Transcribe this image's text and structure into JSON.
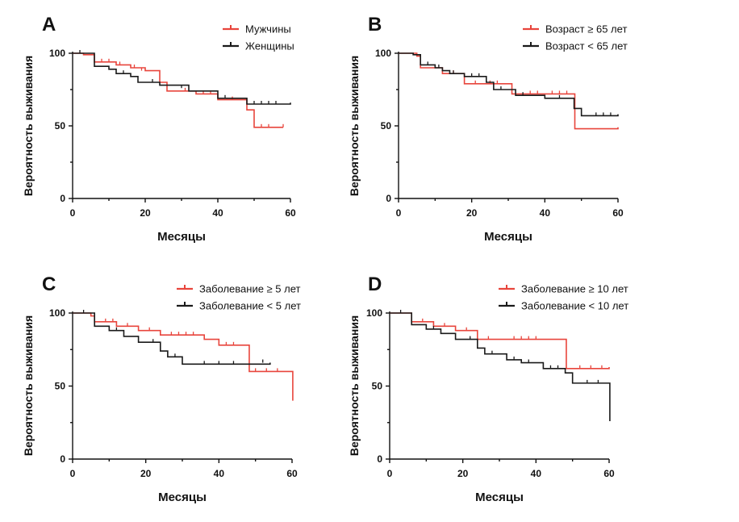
{
  "chart_data": [
    {
      "type": "line",
      "subtype": "kaplan-meier",
      "panel": "A",
      "xlabel": "Месяцы",
      "ylabel": "Вероятность выживания",
      "xlim": [
        0,
        60
      ],
      "ylim": [
        0,
        100
      ],
      "xticks": [
        "0",
        "20",
        "40",
        "60"
      ],
      "yticks": [
        "0",
        "50",
        "100"
      ],
      "legend_position": "top-right",
      "series": [
        {
          "name": "Мужчины",
          "color": "#e8453c",
          "steps": [
            [
              0,
              100
            ],
            [
              3,
              99
            ],
            [
              6,
              94
            ],
            [
              12,
              92
            ],
            [
              16,
              90
            ],
            [
              20,
              88
            ],
            [
              24,
              80
            ],
            [
              26,
              74
            ],
            [
              34,
              72
            ],
            [
              40,
              68
            ],
            [
              48,
              61
            ],
            [
              50,
              49
            ],
            [
              58,
              49
            ]
          ],
          "censored": [
            [
              8,
              94
            ],
            [
              10,
              94
            ],
            [
              13,
              92
            ],
            [
              17,
              90
            ],
            [
              19,
              88
            ],
            [
              31,
              74
            ],
            [
              36,
              72
            ],
            [
              38,
              72
            ],
            [
              44,
              68
            ],
            [
              52,
              49
            ],
            [
              54,
              49
            ],
            [
              58,
              49
            ]
          ]
        },
        {
          "name": "Женщины",
          "color": "#1a1a1a",
          "steps": [
            [
              0,
              100
            ],
            [
              6,
              91
            ],
            [
              10,
              89
            ],
            [
              12,
              86
            ],
            [
              16,
              84
            ],
            [
              18,
              80
            ],
            [
              24,
              78
            ],
            [
              32,
              74
            ],
            [
              40,
              69
            ],
            [
              48,
              65
            ],
            [
              60,
              66
            ]
          ],
          "censored": [
            [
              2,
              100
            ],
            [
              14,
              86
            ],
            [
              22,
              80
            ],
            [
              30,
              76
            ],
            [
              42,
              69
            ],
            [
              50,
              65
            ],
            [
              52,
              65
            ],
            [
              54,
              65
            ],
            [
              56,
              65
            ]
          ]
        }
      ]
    },
    {
      "type": "line",
      "subtype": "kaplan-meier",
      "panel": "B",
      "xlabel": "Месяцы",
      "ylabel": "Вероятность выживания",
      "xlim": [
        0,
        60
      ],
      "ylim": [
        0,
        100
      ],
      "xticks": [
        "0",
        "20",
        "40",
        "60"
      ],
      "yticks": [
        "0",
        "50",
        "100"
      ],
      "legend_position": "top-right",
      "series": [
        {
          "name": "Возраст ≥ 65 лет",
          "color": "#e8453c",
          "steps": [
            [
              0,
              100
            ],
            [
              5,
              98
            ],
            [
              6,
              90
            ],
            [
              12,
              86
            ],
            [
              18,
              79
            ],
            [
              24,
              79
            ],
            [
              31,
              72
            ],
            [
              48,
              72
            ],
            [
              48.2,
              48
            ],
            [
              60,
              49
            ]
          ],
          "censored": [
            [
              10,
              90
            ],
            [
              15,
              86
            ],
            [
              21,
              79
            ],
            [
              25,
              79
            ],
            [
              27,
              79
            ],
            [
              36,
              72
            ],
            [
              38,
              72
            ],
            [
              42,
              72
            ],
            [
              44,
              72
            ],
            [
              46,
              72
            ]
          ]
        },
        {
          "name": "Возраст < 65 лет",
          "color": "#1a1a1a",
          "steps": [
            [
              0,
              100
            ],
            [
              4,
              99
            ],
            [
              6,
              92
            ],
            [
              10,
              90
            ],
            [
              12,
              88
            ],
            [
              14,
              86
            ],
            [
              18,
              84
            ],
            [
              24,
              80
            ],
            [
              26,
              75
            ],
            [
              32,
              71
            ],
            [
              40,
              69
            ],
            [
              48,
              62
            ],
            [
              50,
              57
            ],
            [
              60,
              58
            ]
          ],
          "censored": [
            [
              8,
              92
            ],
            [
              11,
              90
            ],
            [
              15,
              86
            ],
            [
              20,
              84
            ],
            [
              22,
              84
            ],
            [
              28,
              75
            ],
            [
              34,
              71
            ],
            [
              44,
              69
            ],
            [
              54,
              57
            ],
            [
              56,
              57
            ],
            [
              58,
              57
            ]
          ]
        }
      ]
    },
    {
      "type": "line",
      "subtype": "kaplan-meier",
      "panel": "C",
      "xlabel": "Месяцы",
      "ylabel": "Вероятность выживания",
      "xlim": [
        0,
        60
      ],
      "ylim": [
        0,
        100
      ],
      "xticks": [
        "0",
        "20",
        "40",
        "60"
      ],
      "yticks": [
        "0",
        "50",
        "100"
      ],
      "legend_position": "top-right",
      "series": [
        {
          "name": "Заболевание ≥ 5 лет",
          "color": "#e8453c",
          "steps": [
            [
              0,
              100
            ],
            [
              5,
              98
            ],
            [
              6,
              94
            ],
            [
              12,
              91
            ],
            [
              18,
              88
            ],
            [
              24,
              85
            ],
            [
              36,
              82
            ],
            [
              40,
              78
            ],
            [
              48,
              78
            ],
            [
              48.3,
              60
            ],
            [
              60,
              60
            ],
            [
              60.2,
              40
            ]
          ],
          "censored": [
            [
              9,
              94
            ],
            [
              11,
              94
            ],
            [
              15,
              91
            ],
            [
              21,
              88
            ],
            [
              27,
              85
            ],
            [
              29,
              85
            ],
            [
              31,
              85
            ],
            [
              33,
              85
            ],
            [
              42,
              78
            ],
            [
              44,
              78
            ],
            [
              50,
              60
            ],
            [
              53,
              60
            ],
            [
              56,
              60
            ]
          ]
        },
        {
          "name": "Заболевание < 5 лет",
          "color": "#1a1a1a",
          "steps": [
            [
              0,
              100
            ],
            [
              6,
              91
            ],
            [
              10,
              88
            ],
            [
              14,
              84
            ],
            [
              18,
              80
            ],
            [
              24,
              74
            ],
            [
              26,
              70
            ],
            [
              30,
              65
            ],
            [
              48,
              65
            ],
            [
              54,
              66
            ]
          ],
          "censored": [
            [
              3,
              100
            ],
            [
              12,
              88
            ],
            [
              22,
              80
            ],
            [
              28,
              70
            ],
            [
              36,
              65
            ],
            [
              40,
              65
            ],
            [
              44,
              65
            ],
            [
              52,
              66
            ]
          ]
        }
      ]
    },
    {
      "type": "line",
      "subtype": "kaplan-meier",
      "panel": "D",
      "xlabel": "Месяцы",
      "ylabel": "Вероятность выживания",
      "xlim": [
        0,
        60
      ],
      "ylim": [
        0,
        100
      ],
      "xticks": [
        "0",
        "20",
        "40",
        "60"
      ],
      "yticks": [
        "0",
        "50",
        "100"
      ],
      "legend_position": "top-right",
      "series": [
        {
          "name": "Заболевание ≥ 10 лет",
          "color": "#e8453c",
          "steps": [
            [
              0,
              100
            ],
            [
              6,
              94
            ],
            [
              12,
              91
            ],
            [
              18,
              88
            ],
            [
              24,
              82
            ],
            [
              48,
              82
            ],
            [
              48.3,
              62
            ],
            [
              60,
              63
            ]
          ],
          "censored": [
            [
              9,
              94
            ],
            [
              15,
              91
            ],
            [
              21,
              88
            ],
            [
              27,
              82
            ],
            [
              34,
              82
            ],
            [
              36,
              82
            ],
            [
              38,
              82
            ],
            [
              40,
              82
            ],
            [
              52,
              62
            ],
            [
              55,
              62
            ],
            [
              58,
              62
            ]
          ]
        },
        {
          "name": "Заболевание < 10 лет",
          "color": "#1a1a1a",
          "steps": [
            [
              0,
              100
            ],
            [
              6,
              92
            ],
            [
              10,
              89
            ],
            [
              14,
              86
            ],
            [
              18,
              82
            ],
            [
              24,
              76
            ],
            [
              26,
              72
            ],
            [
              32,
              68
            ],
            [
              36,
              66
            ],
            [
              42,
              62
            ],
            [
              48,
              59
            ],
            [
              50,
              52
            ],
            [
              60,
              52
            ],
            [
              60.2,
              26
            ]
          ],
          "censored": [
            [
              3,
              100
            ],
            [
              12,
              89
            ],
            [
              22,
              82
            ],
            [
              28,
              72
            ],
            [
              34,
              68
            ],
            [
              38,
              66
            ],
            [
              44,
              62
            ],
            [
              46,
              62
            ],
            [
              54,
              52
            ],
            [
              57,
              52
            ]
          ]
        }
      ]
    }
  ]
}
